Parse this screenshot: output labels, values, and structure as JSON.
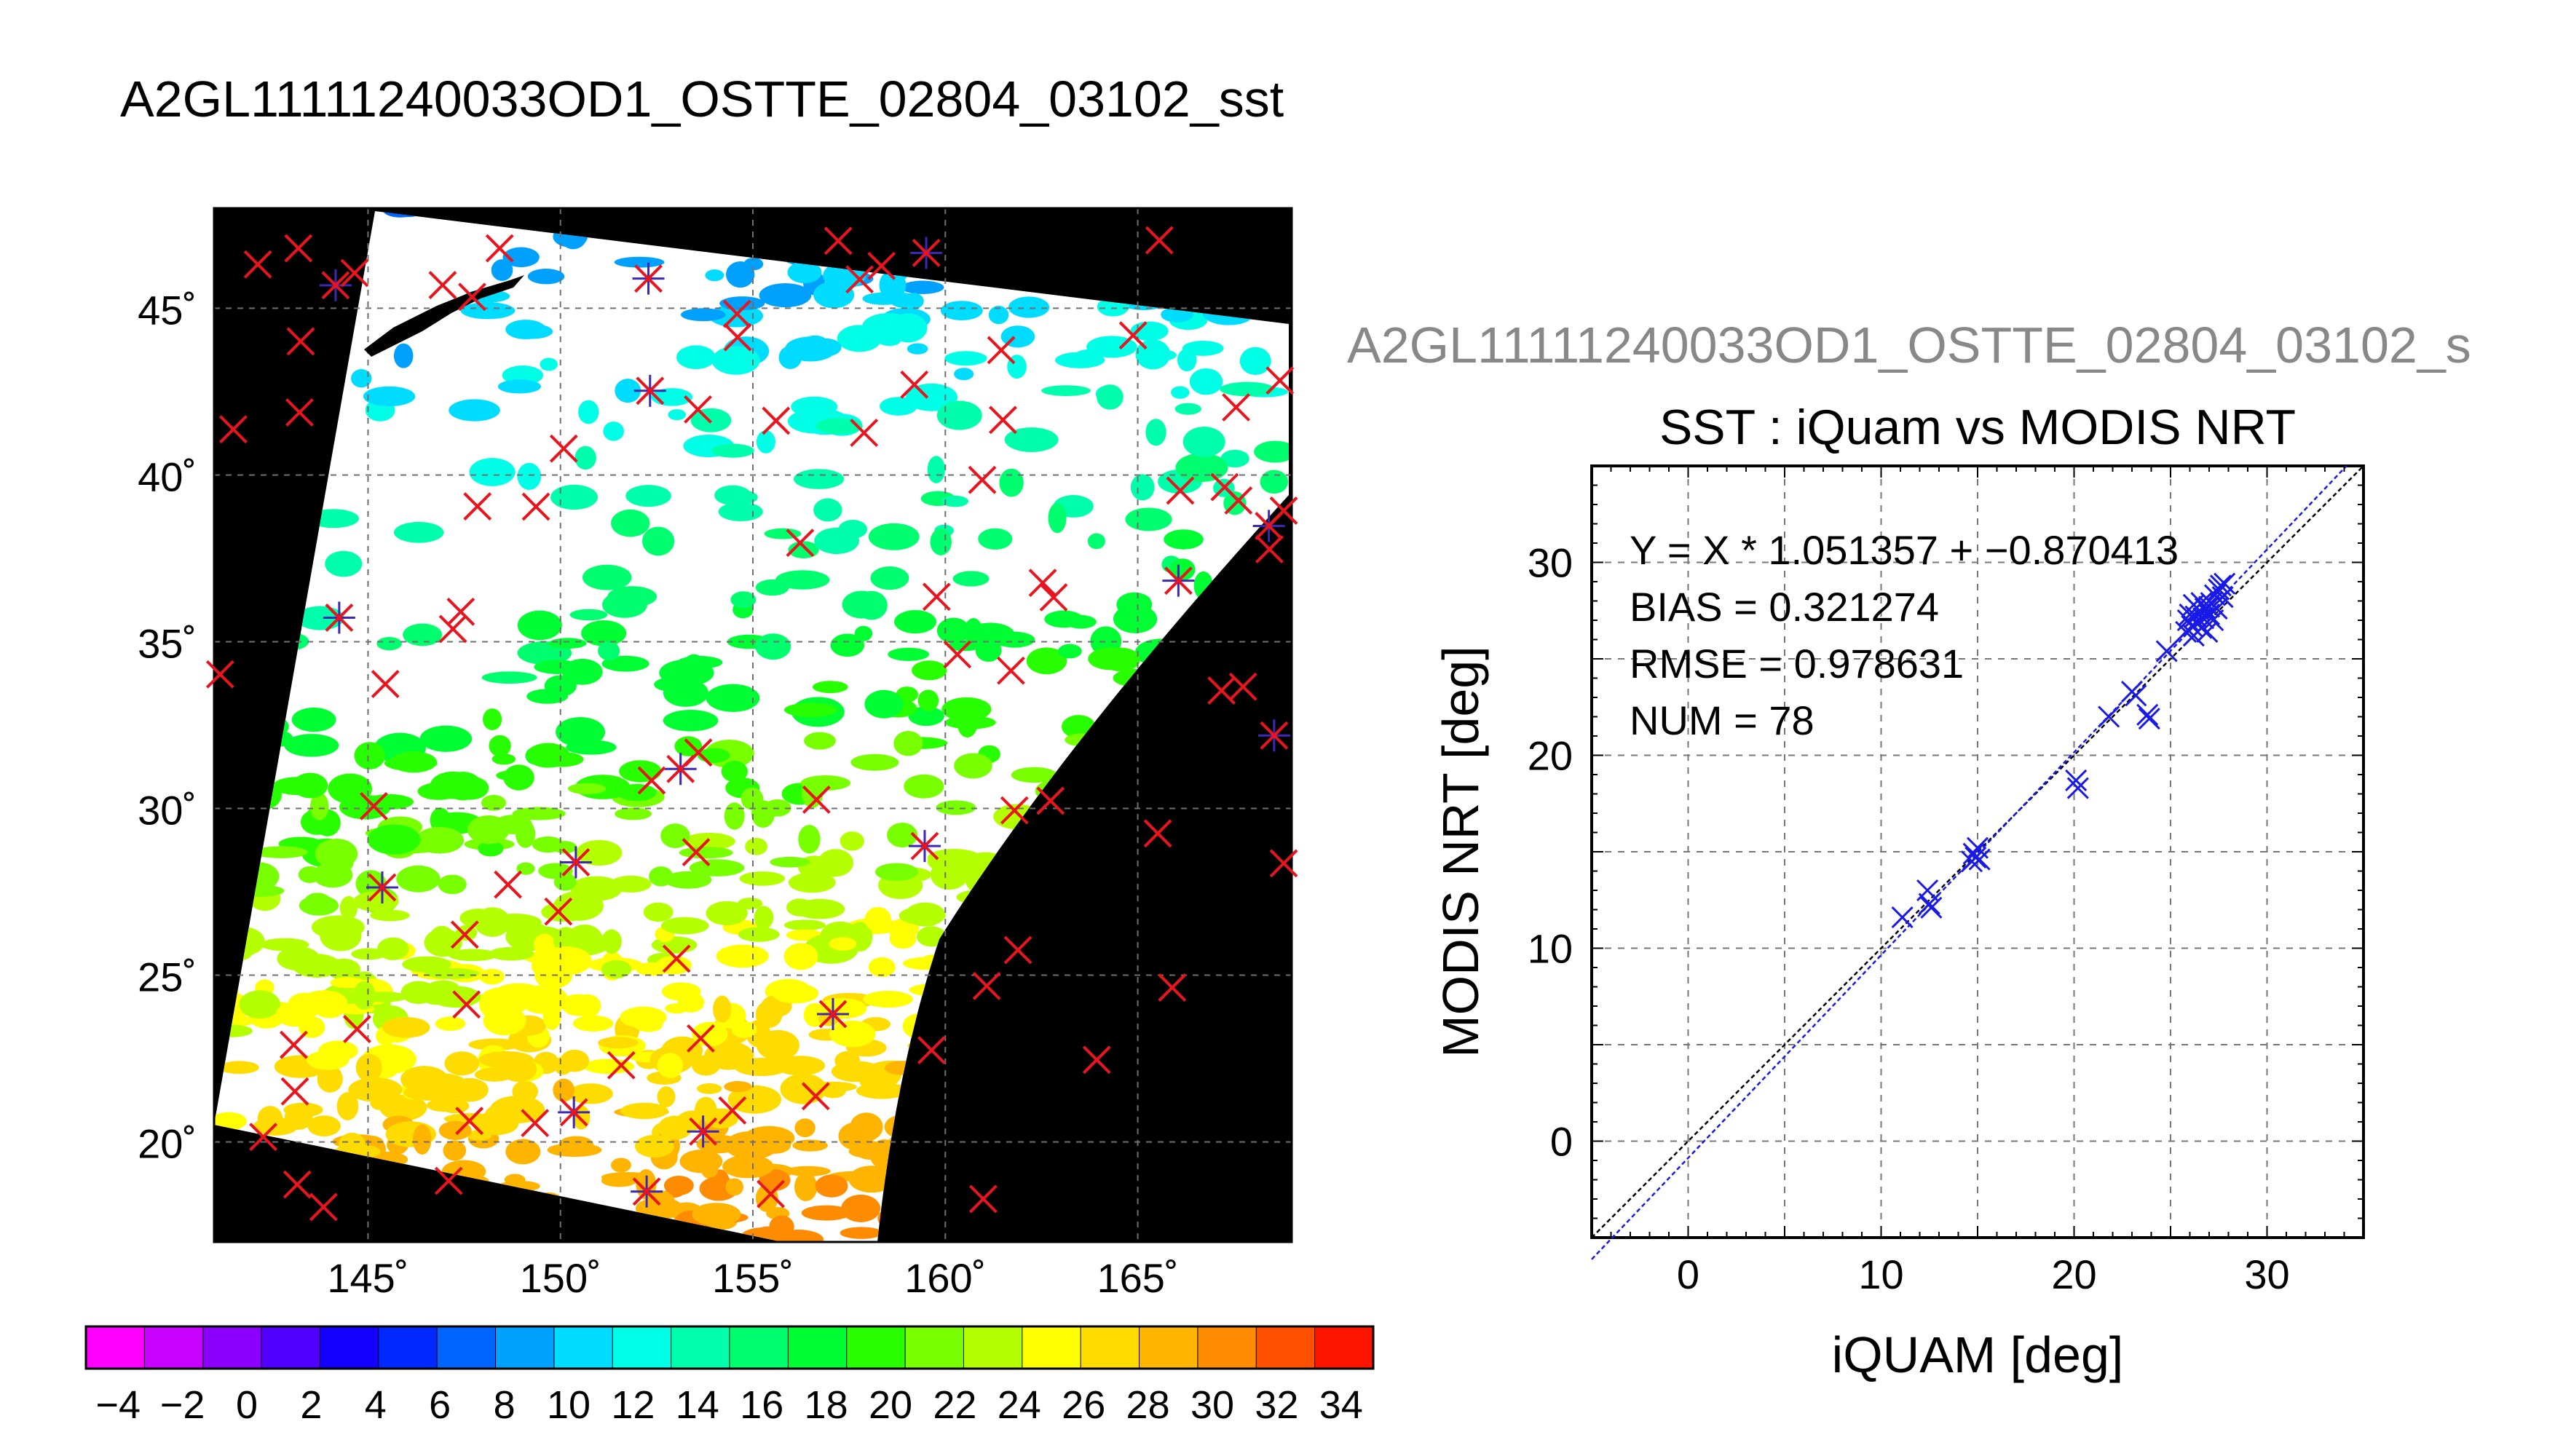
{
  "page_title": "A2GL11111240033OD1_OSTTE_02804_03102_sst",
  "map": {
    "lat_ticks": [
      "20˚",
      "25˚",
      "30˚",
      "35˚",
      "40˚",
      "45˚"
    ],
    "lon_ticks": [
      "145˚",
      "150˚",
      "155˚",
      "160˚",
      "165˚"
    ],
    "lat_values": [
      20,
      25,
      30,
      35,
      40,
      45
    ],
    "lon_values": [
      145,
      150,
      155,
      160,
      165
    ],
    "lon_range": [
      141,
      169
    ],
    "lat_range": [
      17,
      48
    ],
    "colors": {
      "background": "#000000",
      "cloud": "#ffffff",
      "match_marker": "#e8141e",
      "valid_marker": "#3c28b4",
      "grid": "#707070"
    }
  },
  "colorbar": {
    "labels": [
      "−4",
      "−2",
      "0",
      "2",
      "4",
      "6",
      "8",
      "10",
      "12",
      "14",
      "16",
      "18",
      "20",
      "22",
      "24",
      "26",
      "28",
      "30",
      "32",
      "34"
    ],
    "range": [
      -5,
      35
    ],
    "colors": [
      "#ff00ff",
      "#c800ff",
      "#8c00ff",
      "#5000ff",
      "#1400ff",
      "#0028ff",
      "#0064ff",
      "#00a0ff",
      "#00dcff",
      "#00ffe6",
      "#00ffaa",
      "#00ff6e",
      "#00ff32",
      "#28ff00",
      "#78ff00",
      "#b4ff00",
      "#ffff00",
      "#ffdc00",
      "#ffb400",
      "#ff8c00",
      "#ff5000",
      "#ff1400"
    ]
  },
  "scatter_header": "A2GL11111240033OD1_OSTTE_02804_03102_s",
  "chart_data": {
    "type": "scatter",
    "title": "SST : iQuam vs MODIS NRT",
    "xlabel": "iQUAM [deg]",
    "ylabel": "MODIS NRT [deg]",
    "xlim": [
      -5,
      35
    ],
    "ylim": [
      -5,
      35
    ],
    "xticks": [
      "0",
      "10",
      "20",
      "30"
    ],
    "yticks": [
      "0",
      "10",
      "20",
      "30"
    ],
    "grid": true,
    "annotations": [
      "Y = X * 1.051357 + −0.870413",
      "BIAS = 0.321274",
      "RMSE = 0.978631",
      "NUM = 78"
    ],
    "fit": {
      "slope": 1.051357,
      "intercept": -0.870413
    },
    "points": [
      [
        11.1,
        11.6
      ],
      [
        12.4,
        13.0
      ],
      [
        12.5,
        12.3
      ],
      [
        12.6,
        12.1
      ],
      [
        14.7,
        14.5
      ],
      [
        14.8,
        14.9
      ],
      [
        14.9,
        14.7
      ],
      [
        15.0,
        15.2
      ],
      [
        15.1,
        14.6
      ],
      [
        20.1,
        18.7
      ],
      [
        20.2,
        18.3
      ],
      [
        21.8,
        22.0
      ],
      [
        23.0,
        23.3
      ],
      [
        23.2,
        23.1
      ],
      [
        23.8,
        22.1
      ],
      [
        23.9,
        21.9
      ],
      [
        24.8,
        25.4
      ],
      [
        25.8,
        26.4
      ],
      [
        25.9,
        27.0
      ],
      [
        26.0,
        27.3
      ],
      [
        26.1,
        26.7
      ],
      [
        26.2,
        26.2
      ],
      [
        26.3,
        27.2
      ],
      [
        26.4,
        26.9
      ],
      [
        26.5,
        27.5
      ],
      [
        26.6,
        26.6
      ],
      [
        26.7,
        27.1
      ],
      [
        26.8,
        27.6
      ],
      [
        26.9,
        26.4
      ],
      [
        27.0,
        27.3
      ],
      [
        27.1,
        27.9
      ],
      [
        27.2,
        27.0
      ],
      [
        27.3,
        28.3
      ],
      [
        27.4,
        27.6
      ],
      [
        27.5,
        28.6
      ],
      [
        27.6,
        28.8
      ],
      [
        27.7,
        28.2
      ],
      [
        27.8,
        28.9
      ],
      [
        26.2,
        27.8
      ],
      [
        26.6,
        27.9
      ],
      [
        27.0,
        27.7
      ]
    ]
  }
}
